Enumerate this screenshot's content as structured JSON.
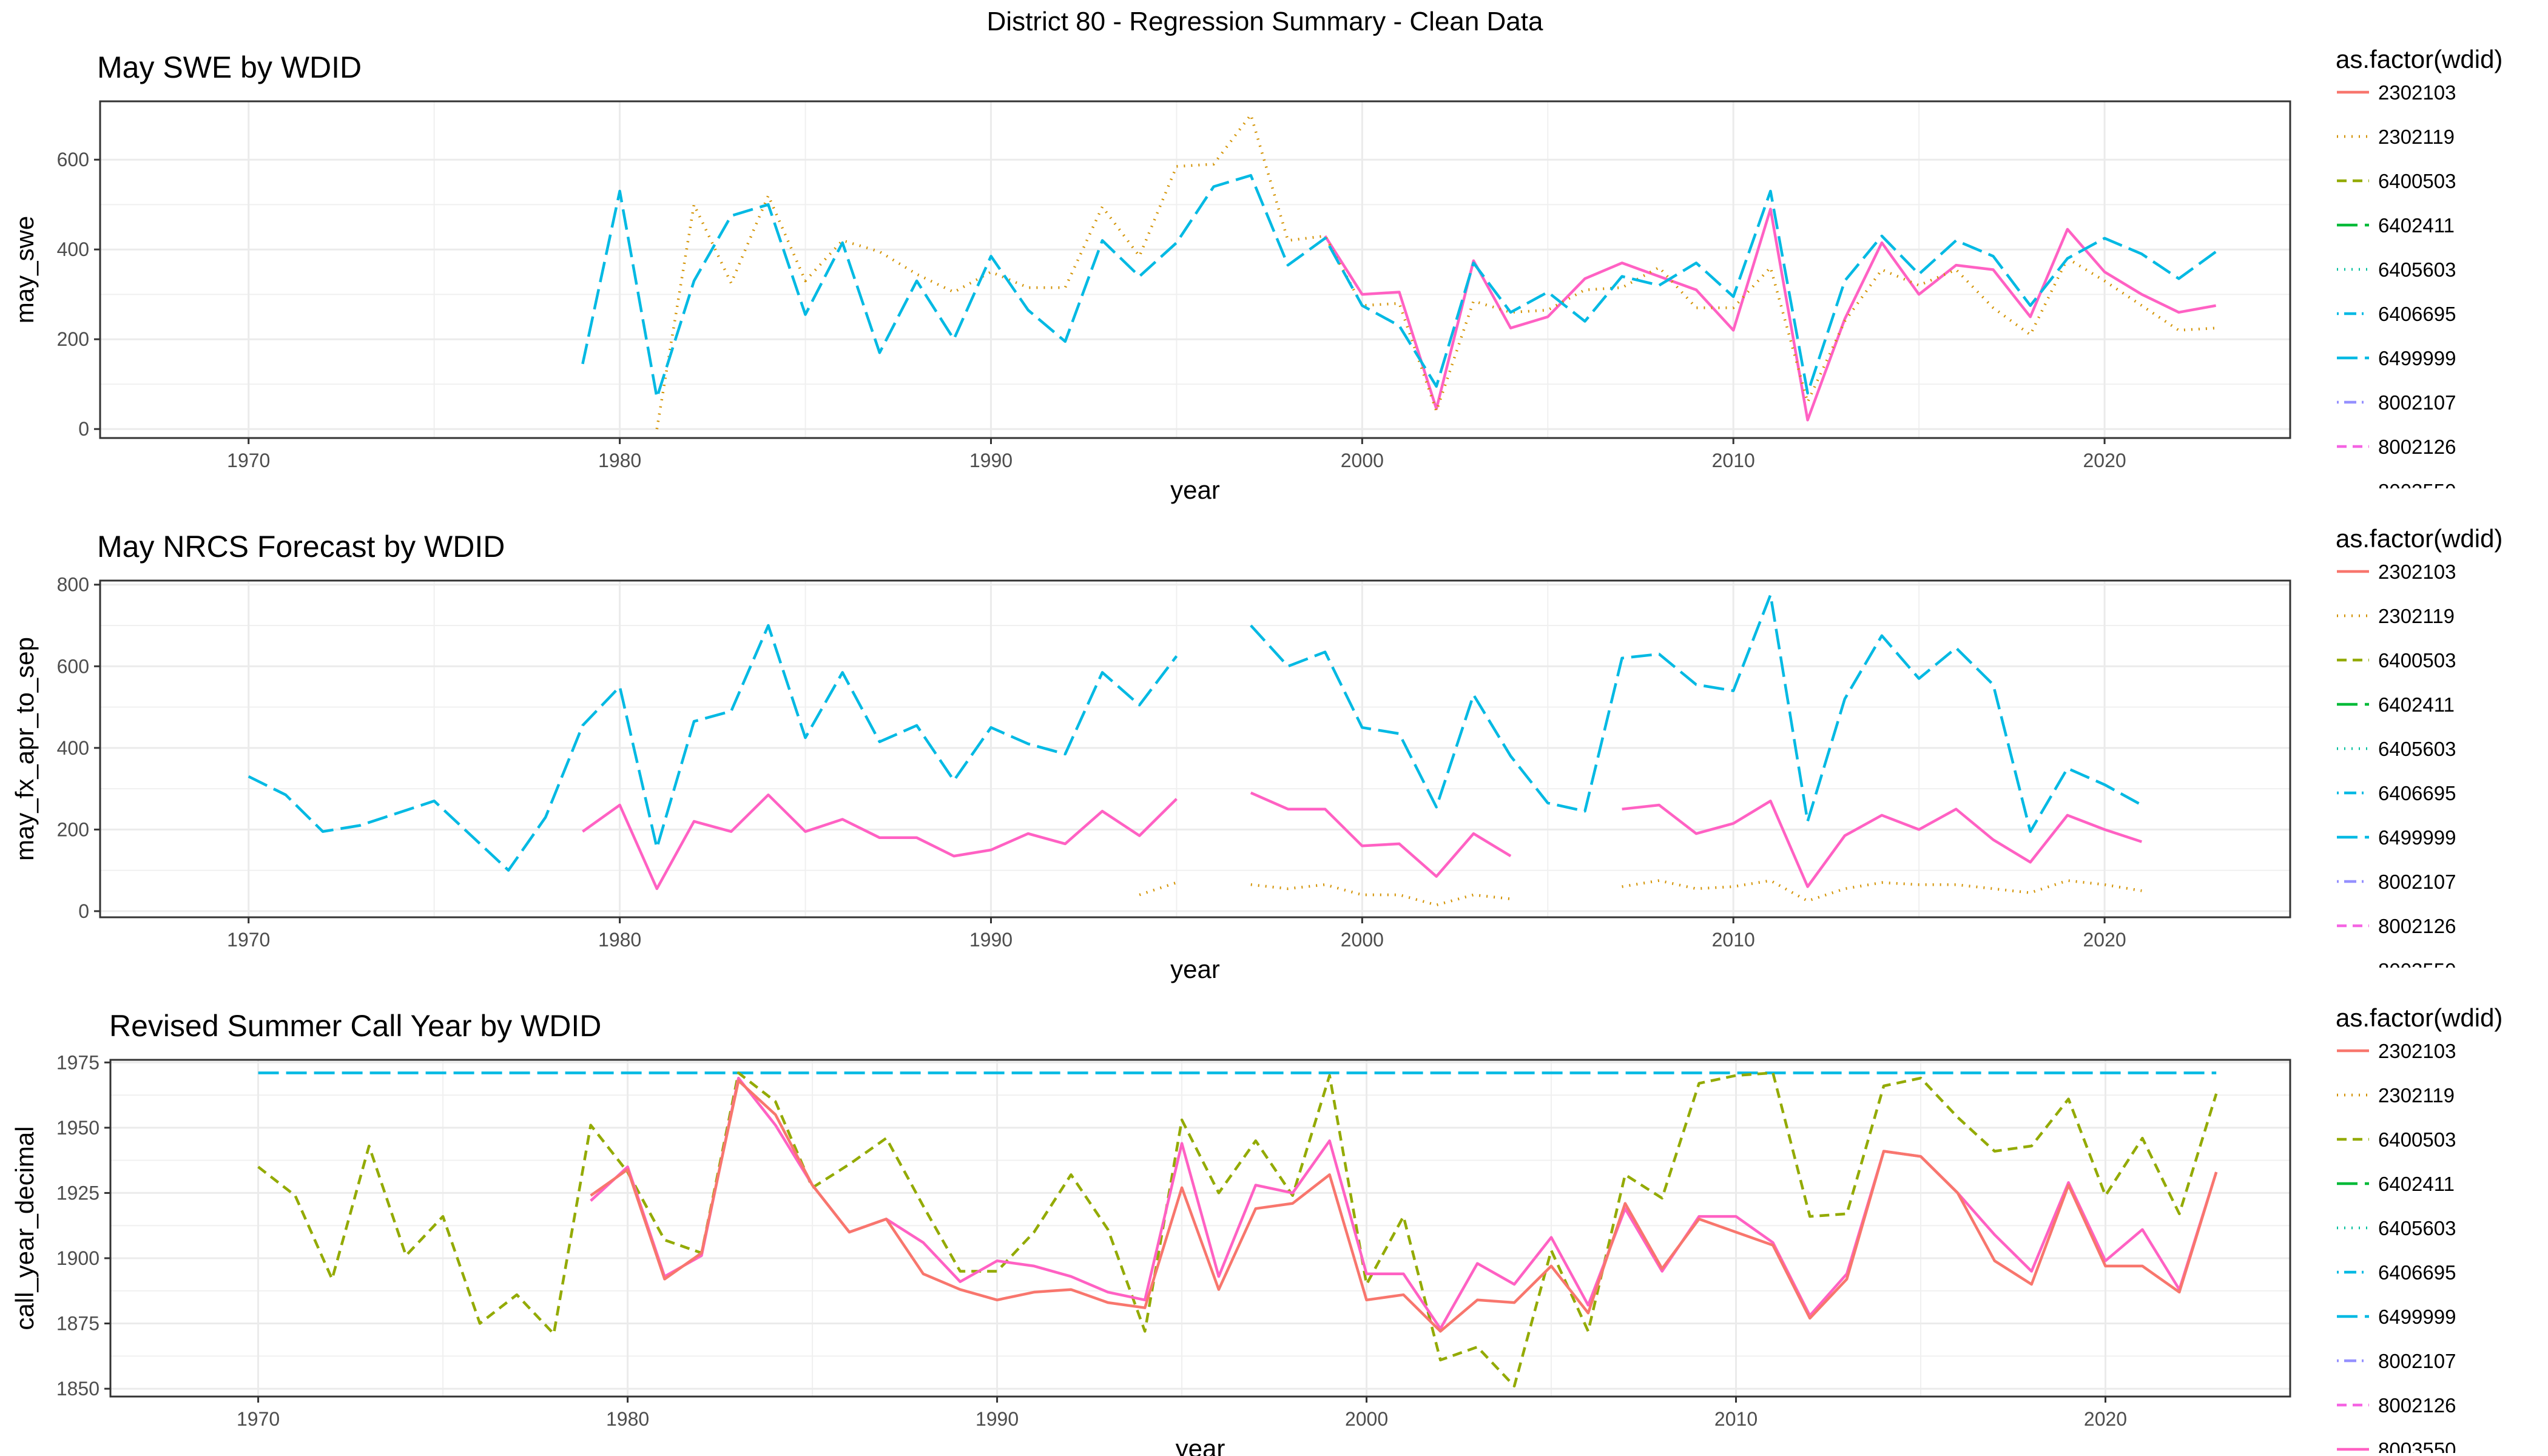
{
  "figure_title": "District 80 - Regression Summary - Clean Data",
  "legend_title": "as.factor(wdid)",
  "legend_items": [
    {
      "id": "2302103",
      "color": "#F8766D",
      "dash": "solid"
    },
    {
      "id": "2302119",
      "color": "#D39200",
      "dash": "dotted"
    },
    {
      "id": "6400503",
      "color": "#93AA00",
      "dash": "dashed"
    },
    {
      "id": "6402411",
      "color": "#00BA38",
      "dash": "longdash"
    },
    {
      "id": "6405603",
      "color": "#00C19F",
      "dash": "dotted"
    },
    {
      "id": "6406695",
      "color": "#00B9E3",
      "dash": "dotdash"
    },
    {
      "id": "6499999",
      "color": "#00B9E3",
      "dash": "longdash"
    },
    {
      "id": "8002107",
      "color": "#9590FF",
      "dash": "dotdash"
    },
    {
      "id": "8002126",
      "color": "#F564E3",
      "dash": "dashed"
    },
    {
      "id": "8003550",
      "color": "#FF61C3",
      "dash": "solid"
    }
  ],
  "chart_data": [
    {
      "type": "line",
      "title": "May SWE by WDID",
      "xlabel": "year",
      "ylabel": "may_swe",
      "xlim": [
        1966,
        2025
      ],
      "ylim": [
        -20,
        730
      ],
      "xticks": [
        1970,
        1980,
        1990,
        2000,
        2010,
        2020
      ],
      "yticks": [
        0,
        200,
        400,
        600
      ],
      "grid": true,
      "legend_position": "right",
      "legend_visible_items": 10,
      "series": [
        {
          "name": "8003550",
          "x": [
            1999,
            2000,
            2001,
            2002,
            2003,
            2004,
            2005,
            2006,
            2007,
            2008,
            2009,
            2010,
            2011,
            2012,
            2013,
            2014,
            2015,
            2016,
            2017,
            2018,
            2019,
            2020,
            2021,
            2022,
            2023
          ],
          "values": [
            430,
            300,
            305,
            45,
            375,
            225,
            250,
            335,
            370,
            340,
            310,
            220,
            490,
            20,
            245,
            415,
            300,
            365,
            355,
            250,
            445,
            350,
            300,
            260,
            275
          ]
        },
        {
          "name": "2302119",
          "x": [
            1981,
            1982,
            1983,
            1984,
            1985,
            1986,
            1987,
            1988,
            1989,
            1990,
            1991,
            1992,
            1993,
            1994,
            1995,
            1996,
            1997,
            1998,
            1999,
            2000,
            2001,
            2002,
            2003,
            2004,
            2005,
            2006,
            2007,
            2008,
            2009,
            2010,
            2011,
            2012,
            2013,
            2014,
            2015,
            2016,
            2017,
            2018,
            2019,
            2020,
            2021,
            2022,
            2023
          ],
          "values": [
            0,
            500,
            325,
            520,
            330,
            420,
            395,
            345,
            305,
            350,
            315,
            315,
            495,
            385,
            585,
            590,
            700,
            420,
            430,
            275,
            280,
            40,
            285,
            260,
            265,
            310,
            315,
            360,
            270,
            270,
            360,
            60,
            240,
            355,
            320,
            355,
            270,
            210,
            380,
            330,
            275,
            220,
            225
          ]
        },
        {
          "name": "6499999",
          "x": [
            1979,
            1980,
            1981,
            1982,
            1983,
            1984,
            1985,
            1986,
            1987,
            1988,
            1989,
            1990,
            1991,
            1992,
            1993,
            1994,
            1995,
            1996,
            1997,
            1998,
            1999,
            2000,
            2001,
            2002,
            2003,
            2004,
            2005,
            2006,
            2007,
            2008,
            2009,
            2010,
            2011,
            2012,
            2013,
            2014,
            2015,
            2016,
            2017,
            2018,
            2019,
            2020,
            2021,
            2022,
            2023
          ],
          "values": [
            145,
            530,
            70,
            330,
            475,
            500,
            255,
            415,
            170,
            330,
            200,
            385,
            265,
            195,
            420,
            340,
            415,
            540,
            565,
            365,
            425,
            275,
            230,
            95,
            370,
            260,
            305,
            240,
            340,
            320,
            370,
            295,
            530,
            80,
            330,
            430,
            345,
            420,
            385,
            275,
            380,
            425,
            390,
            335,
            395
          ]
        }
      ]
    },
    {
      "type": "line",
      "title": "May NRCS Forecast by WDID",
      "xlabel": "year",
      "ylabel": "may_fx_apr_to_sep",
      "xlim": [
        1966,
        2025
      ],
      "ylim": [
        -15,
        810
      ],
      "xticks": [
        1970,
        1980,
        1990,
        2000,
        2010,
        2020
      ],
      "yticks": [
        0,
        200,
        400,
        600,
        800
      ],
      "grid": true,
      "legend_position": "right",
      "legend_visible_items": 10,
      "series": [
        {
          "name": "8003550",
          "x": [
            1979,
            1980,
            1981,
            1982,
            1983,
            1984,
            1985,
            1986,
            1987,
            1988,
            1989,
            1990,
            1991,
            1992,
            1993,
            1994,
            1995,
            null,
            1997,
            1998,
            1999,
            2000,
            2001,
            2002,
            2003,
            2004,
            null,
            2007,
            2008,
            2009,
            2010,
            2011,
            2012,
            2013,
            2014,
            2015,
            2016,
            2017,
            2018,
            2019,
            2020,
            2021
          ],
          "values": [
            195,
            260,
            55,
            220,
            195,
            285,
            195,
            225,
            180,
            180,
            135,
            150,
            190,
            165,
            245,
            185,
            275,
            null,
            290,
            250,
            250,
            160,
            165,
            85,
            190,
            135,
            null,
            250,
            260,
            190,
            215,
            270,
            60,
            185,
            235,
            200,
            250,
            175,
            120,
            235,
            200,
            170
          ]
        },
        {
          "name": "2302119",
          "x": [
            1994,
            1995,
            null,
            1997,
            1998,
            1999,
            2000,
            2001,
            2002,
            2003,
            2004,
            null,
            2007,
            2008,
            2009,
            2010,
            2011,
            2012,
            2013,
            2014,
            2015,
            2016,
            2017,
            2018,
            2019,
            2020,
            2021
          ],
          "values": [
            40,
            70,
            null,
            65,
            55,
            65,
            40,
            40,
            15,
            40,
            30,
            null,
            60,
            75,
            55,
            60,
            75,
            25,
            55,
            70,
            65,
            65,
            55,
            45,
            75,
            65,
            50
          ]
        },
        {
          "name": "6499999",
          "x": [
            1970,
            1971,
            1972,
            1973,
            1974,
            1975,
            1976,
            1977,
            1978,
            1979,
            1980,
            1981,
            1982,
            1983,
            1984,
            1985,
            1986,
            1987,
            1988,
            1989,
            1990,
            1991,
            1992,
            1993,
            1994,
            1995,
            null,
            1997,
            1998,
            1999,
            2000,
            2001,
            2002,
            2003,
            2004,
            2005,
            2006,
            2007,
            2008,
            2009,
            2010,
            2011,
            2012,
            2013,
            2014,
            2015,
            2016,
            2017,
            2018,
            2019,
            2020,
            2021
          ],
          "values": [
            330,
            285,
            195,
            210,
            240,
            270,
            185,
            100,
            230,
            455,
            550,
            155,
            465,
            490,
            700,
            425,
            585,
            415,
            455,
            320,
            450,
            410,
            385,
            585,
            505,
            625,
            null,
            700,
            600,
            635,
            450,
            435,
            255,
            530,
            380,
            265,
            245,
            620,
            630,
            555,
            540,
            775,
            220,
            520,
            675,
            570,
            645,
            555,
            195,
            350,
            310,
            260
          ]
        }
      ]
    },
    {
      "type": "line",
      "title": "Revised Summer Call Year by WDID",
      "xlabel": "year",
      "ylabel": "call_year_decimal",
      "xlim": [
        1966,
        2025
      ],
      "ylim": [
        1847,
        1976
      ],
      "xticks": [
        1970,
        1980,
        1990,
        2000,
        2010,
        2020
      ],
      "yticks": [
        1850,
        1875,
        1900,
        1925,
        1950,
        1975
      ],
      "grid": true,
      "legend_position": "right",
      "legend_visible_items": 10,
      "series": [
        {
          "name": "6499999",
          "x": [
            1970,
            2023
          ],
          "values": [
            1971,
            1971
          ]
        },
        {
          "name": "6400503",
          "x": [
            1970,
            1971,
            1972,
            1973,
            1974,
            1975,
            1976,
            1977,
            1978,
            1979,
            1980,
            1981,
            1982,
            1983,
            1984,
            1985,
            1986,
            1987,
            1988,
            1989,
            1990,
            1991,
            1992,
            1993,
            1994,
            1995,
            1996,
            1997,
            1998,
            1999,
            2000,
            2001,
            2002,
            2003,
            2004,
            2005,
            2006,
            2007,
            2008,
            2009,
            2010,
            2011,
            2012,
            2013,
            2014,
            2015,
            2016,
            2017,
            2018,
            2019,
            2020,
            2021,
            2022,
            2023
          ],
          "values": [
            1935,
            1924,
            1892,
            1943,
            1901,
            1916,
            1875,
            1886,
            1871,
            1951,
            1933,
            1907,
            1902,
            1971,
            1960,
            1927,
            1936,
            1946,
            1920,
            1895,
            1895,
            1910,
            1932,
            1911,
            1872,
            1953,
            1925,
            1945,
            1924,
            1970,
            1890,
            1916,
            1861,
            1866,
            1851,
            1903,
            1872,
            1932,
            1923,
            1967,
            1970,
            1971,
            1916,
            1917,
            1966,
            1969,
            1954,
            1941,
            1943,
            1961,
            1924,
            1946,
            1917,
            1963
          ]
        },
        {
          "name": "8003550",
          "x": [
            1979,
            1980,
            1981,
            1982,
            1983,
            1984,
            1985,
            1986,
            1987,
            1988,
            1989,
            1990,
            1991,
            1992,
            1993,
            1994,
            1995,
            1996,
            1997,
            1998,
            1999,
            2000,
            2001,
            2002,
            2003,
            2004,
            2005,
            2006,
            2007,
            2008,
            2009,
            2010,
            2011,
            2012,
            2013,
            2014,
            2015,
            2016,
            2017,
            2018,
            2019,
            2020,
            2021,
            2022,
            2023
          ],
          "values": [
            1922,
            1935,
            1893,
            1901,
            1969,
            1951,
            1928,
            1910,
            1915,
            1906,
            1891,
            1899,
            1897,
            1893,
            1887,
            1884,
            1944,
            1893,
            1928,
            1925,
            1945,
            1894,
            1894,
            1873,
            1898,
            1890,
            1908,
            1882,
            1919,
            1895,
            1916,
            1916,
            1906,
            1878,
            1894,
            1941,
            1939,
            1925,
            1909,
            1895,
            1929,
            1899,
            1911,
            1888,
            1933
          ]
        },
        {
          "name": "2302103",
          "x": [
            1979,
            1980,
            1981,
            1982,
            1983,
            1984,
            1985,
            1986,
            1987,
            1988,
            1989,
            1990,
            1991,
            1992,
            1993,
            1994,
            1995,
            1996,
            1997,
            1998,
            1999,
            2000,
            2001,
            2002,
            2003,
            2004,
            2005,
            2006,
            2007,
            2008,
            2009,
            2010,
            2011,
            2012,
            2013,
            2014,
            2015,
            2016,
            2017,
            2018,
            2019,
            2020,
            2021,
            2022,
            2023
          ],
          "values": [
            1924,
            1934,
            1892,
            1902,
            1968,
            1955,
            1928,
            1910,
            1915,
            1894,
            1888,
            1884,
            1887,
            1888,
            1883,
            1881,
            1927,
            1888,
            1919,
            1921,
            1932,
            1884,
            1886,
            1872,
            1884,
            1883,
            1897,
            1879,
            1921,
            1896,
            1915,
            1910,
            1905,
            1877,
            1892,
            1941,
            1939,
            1925,
            1899,
            1890,
            1928,
            1897,
            1897,
            1887,
            1933
          ]
        }
      ]
    }
  ]
}
